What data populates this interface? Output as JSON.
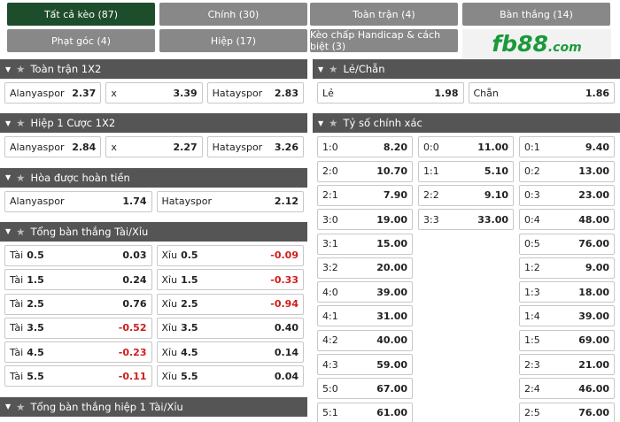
{
  "tabs": [
    [
      {
        "label": "Tất cả kèo (87)",
        "active": true
      },
      {
        "label": "Chính (30)"
      },
      {
        "label": "Toàn trận (4)"
      },
      {
        "label": "Bàn thắng (14)"
      }
    ],
    [
      {
        "label": "Phạt góc (4)"
      },
      {
        "label": "Hiệp (17)"
      },
      {
        "label": "Kèo chấp Handicap & cách biệt (3)"
      }
    ]
  ],
  "logo": {
    "main": "fb88",
    "suffix": ".com"
  },
  "left": [
    {
      "title": "Toàn trận 1X2",
      "rows": [
        [
          {
            "label": "Alanyaspor",
            "odds": "2.37"
          },
          {
            "label": "x",
            "odds": "3.39"
          },
          {
            "label": "Hatayspor",
            "odds": "2.83"
          }
        ]
      ]
    },
    {
      "title": "Hiệp 1 Cược 1X2",
      "rows": [
        [
          {
            "label": "Alanyaspor",
            "odds": "2.84"
          },
          {
            "label": "x",
            "odds": "2.27"
          },
          {
            "label": "Hatayspor",
            "odds": "3.26"
          }
        ]
      ]
    },
    {
      "title": "Hòa được hoàn tiền",
      "rows": [
        [
          {
            "label": "Alanyaspor",
            "odds": "1.74"
          },
          {
            "label": "Hatayspor",
            "odds": "2.12"
          }
        ]
      ]
    },
    {
      "title": "Tổng bàn thắng Tài/Xỉu",
      "rows": [
        [
          {
            "label": "Tài",
            "line": "0.5",
            "odds": "0.03"
          },
          {
            "label": "Xỉu",
            "line": "0.5",
            "odds": "-0.09"
          }
        ],
        [
          {
            "label": "Tài",
            "line": "1.5",
            "odds": "0.24"
          },
          {
            "label": "Xỉu",
            "line": "1.5",
            "odds": "-0.33"
          }
        ],
        [
          {
            "label": "Tài",
            "line": "2.5",
            "odds": "0.76"
          },
          {
            "label": "Xỉu",
            "line": "2.5",
            "odds": "-0.94"
          }
        ],
        [
          {
            "label": "Tài",
            "line": "3.5",
            "odds": "-0.52"
          },
          {
            "label": "Xỉu",
            "line": "3.5",
            "odds": "0.40"
          }
        ],
        [
          {
            "label": "Tài",
            "line": "4.5",
            "odds": "-0.23"
          },
          {
            "label": "Xỉu",
            "line": "4.5",
            "odds": "0.14"
          }
        ],
        [
          {
            "label": "Tài",
            "line": "5.5",
            "odds": "-0.11"
          },
          {
            "label": "Xỉu",
            "line": "5.5",
            "odds": "0.04"
          }
        ]
      ]
    },
    {
      "title": "Tổng bàn thắng hiệp 1 Tài/Xỉu",
      "rows": []
    }
  ],
  "right": [
    {
      "title": "Lẻ/Chẵn",
      "rows": [
        [
          {
            "label": "Lẻ",
            "odds": "1.98"
          },
          {
            "label": "Chẵn",
            "odds": "1.86"
          }
        ]
      ]
    },
    {
      "title": "Tỷ số chính xác",
      "columns": [
        [
          {
            "label": "1:0",
            "odds": "8.20"
          },
          {
            "label": "2:0",
            "odds": "10.70"
          },
          {
            "label": "2:1",
            "odds": "7.90"
          },
          {
            "label": "3:0",
            "odds": "19.00"
          },
          {
            "label": "3:1",
            "odds": "15.00"
          },
          {
            "label": "3:2",
            "odds": "20.00"
          },
          {
            "label": "4:0",
            "odds": "39.00"
          },
          {
            "label": "4:1",
            "odds": "31.00"
          },
          {
            "label": "4:2",
            "odds": "40.00"
          },
          {
            "label": "4:3",
            "odds": "59.00"
          },
          {
            "label": "5:0",
            "odds": "67.00"
          },
          {
            "label": "5:1",
            "odds": "61.00"
          }
        ],
        [
          {
            "label": "0:0",
            "odds": "11.00"
          },
          {
            "label": "1:1",
            "odds": "5.10"
          },
          {
            "label": "2:2",
            "odds": "9.10"
          },
          {
            "label": "3:3",
            "odds": "33.00"
          }
        ],
        [
          {
            "label": "0:1",
            "odds": "9.40"
          },
          {
            "label": "0:2",
            "odds": "13.00"
          },
          {
            "label": "0:3",
            "odds": "23.00"
          },
          {
            "label": "0:4",
            "odds": "48.00"
          },
          {
            "label": "0:5",
            "odds": "76.00"
          },
          {
            "label": "1:2",
            "odds": "9.00"
          },
          {
            "label": "1:3",
            "odds": "18.00"
          },
          {
            "label": "1:4",
            "odds": "39.00"
          },
          {
            "label": "1:5",
            "odds": "69.00"
          },
          {
            "label": "2:3",
            "odds": "21.00"
          },
          {
            "label": "2:4",
            "odds": "46.00"
          },
          {
            "label": "2:5",
            "odds": "76.00"
          }
        ]
      ]
    }
  ]
}
